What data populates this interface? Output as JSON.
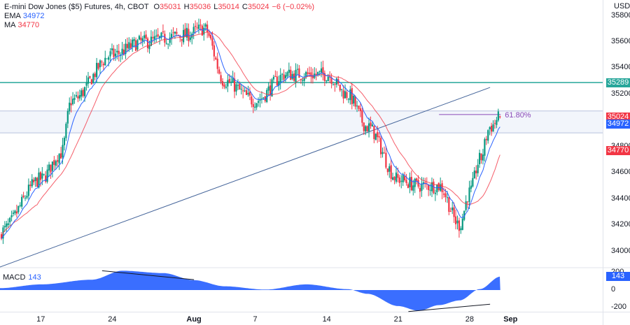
{
  "header": {
    "title": "E-mini Dow Jones ($5) Futures, 4h, CBOT",
    "ohlc": [
      {
        "k": "O",
        "v": "35031"
      },
      {
        "k": "H",
        "v": "35036"
      },
      {
        "k": "L",
        "v": "35014"
      },
      {
        "k": "C",
        "v": "35024"
      },
      {
        "k": "",
        "v": "−6 (−0.02%)"
      }
    ],
    "ema_label": "EMA",
    "ema_value": "34972",
    "ma_label": "MA",
    "ma_value": "34770",
    "currency": "USD"
  },
  "macd": {
    "label": "MACD",
    "value": "143"
  },
  "colors": {
    "up": "#089981",
    "down": "#f23645",
    "ema": "#2962ff",
    "ma": "#f23645",
    "resistance": "#26a69a",
    "zone": "#e8ecf8",
    "trendline": "#45659a",
    "fib": "#8a4ab8",
    "macd_fill": "#2962ff",
    "divergence": "#131722"
  },
  "chart_data": [
    {
      "type": "candlestick",
      "title": "E-mini Dow Jones ($5) Futures, 4h, CBOT",
      "timeframe": "4h",
      "x_tick_labels": [
        "17",
        "24",
        "Aug",
        "7",
        "14",
        "21",
        "28",
        "Sep"
      ],
      "y_tick_labels": [
        34000,
        34200,
        34400,
        34600,
        34800,
        35200,
        35400,
        35600,
        35800
      ],
      "ylim": [
        33880,
        35920
      ],
      "price_tags": [
        {
          "label": "35289",
          "value": 35289,
          "color": "#26a69a"
        },
        {
          "label": "35024",
          "value": 35024,
          "color": "#f23645"
        },
        {
          "label": "34972",
          "value": 34972,
          "color": "#2962ff"
        },
        {
          "label": "34770",
          "value": 34770,
          "color": "#f23645"
        }
      ],
      "horizontal_levels": [
        {
          "name": "resistance",
          "value": 35289
        },
        {
          "name": "support zone",
          "from": 34905,
          "to": 35072
        }
      ],
      "fibonacci": {
        "label": "61.80%",
        "value": 35045
      },
      "trendline": {
        "from": {
          "date": "2023-07-13",
          "value": 33880
        },
        "to": {
          "date": "2023-08-30",
          "value": 35252
        }
      },
      "anchor_closes": [
        {
          "date": "2023-07-13",
          "close": 34150
        },
        {
          "date": "2023-07-17",
          "close": 34550
        },
        {
          "date": "2023-07-19",
          "close": 34750
        },
        {
          "date": "2023-07-20",
          "close": 35150
        },
        {
          "date": "2023-07-24",
          "close": 35500
        },
        {
          "date": "2023-07-27",
          "close": 35600
        },
        {
          "date": "2023-07-31",
          "close": 35650
        },
        {
          "date": "2023-08-02",
          "close": 35700
        },
        {
          "date": "2023-08-04",
          "close": 35300
        },
        {
          "date": "2023-08-07",
          "close": 35150
        },
        {
          "date": "2023-08-10",
          "close": 35350
        },
        {
          "date": "2023-08-14",
          "close": 35350
        },
        {
          "date": "2023-08-16",
          "close": 35200
        },
        {
          "date": "2023-08-18",
          "close": 34950
        },
        {
          "date": "2023-08-21",
          "close": 34550
        },
        {
          "date": "2023-08-23",
          "close": 34500
        },
        {
          "date": "2023-08-25",
          "close": 34500
        },
        {
          "date": "2023-08-27",
          "close": 34200
        },
        {
          "date": "2023-08-28",
          "close": 34450
        },
        {
          "date": "2023-08-29",
          "close": 34700
        },
        {
          "date": "2023-08-30",
          "close": 34950
        },
        {
          "date": "2023-08-31",
          "close": 35024
        }
      ]
    },
    {
      "type": "area",
      "title": "MACD",
      "value": 143,
      "y_tick_labels": [
        200,
        0,
        -200
      ],
      "ylim": [
        -230,
        230
      ],
      "anchors": [
        {
          "date": "2023-07-13",
          "value": 20
        },
        {
          "date": "2023-07-17",
          "value": 60
        },
        {
          "date": "2023-07-22",
          "value": 110
        },
        {
          "date": "2023-07-25",
          "value": 205
        },
        {
          "date": "2023-07-29",
          "value": 180
        },
        {
          "date": "2023-08-01",
          "value": 105
        },
        {
          "date": "2023-08-04",
          "value": 40
        },
        {
          "date": "2023-08-08",
          "value": 5
        },
        {
          "date": "2023-08-12",
          "value": 60
        },
        {
          "date": "2023-08-16",
          "value": 10
        },
        {
          "date": "2023-08-18",
          "value": -40
        },
        {
          "date": "2023-08-21",
          "value": -170
        },
        {
          "date": "2023-08-23",
          "value": -220
        },
        {
          "date": "2023-08-25",
          "value": -160
        },
        {
          "date": "2023-08-27",
          "value": -110
        },
        {
          "date": "2023-08-29",
          "value": 10
        },
        {
          "date": "2023-08-31",
          "value": 143
        }
      ]
    }
  ]
}
